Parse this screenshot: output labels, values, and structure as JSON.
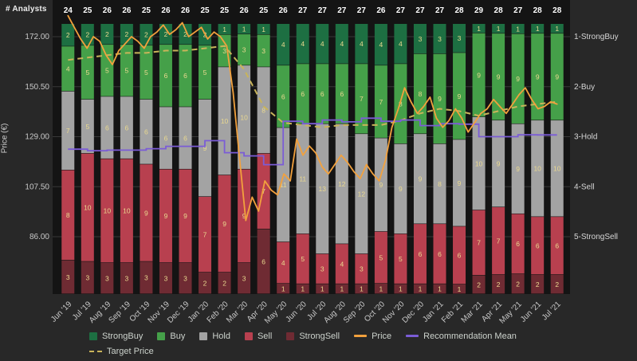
{
  "app": {
    "background": "#282828",
    "plot_background": "#141414",
    "grid_color": "#383838",
    "bar_label_color": "#ead98f",
    "analyst_count_color": "#ffffff",
    "axis_text_color": "#c9c9c9"
  },
  "axes": {
    "top_left_label": "# Analysts",
    "left_label": "Price (€)",
    "price_ticks": [
      "172.00",
      "150.50",
      "129.00",
      "107.50",
      "86.00"
    ],
    "price_tick_values": [
      172,
      150.5,
      129,
      107.5,
      86
    ],
    "recommendation_labels": [
      "1-StrongBuy",
      "2-Buy",
      "3-Hold",
      "4-Sell",
      "5-StrongSell"
    ],
    "recommendation_values": [
      1,
      2,
      3,
      4,
      5
    ]
  },
  "chart_data": {
    "type": "bar",
    "subtype": "100%-stacked monthly analyst recommendations with price, target price and recommendation-mean overlay lines",
    "categories": [
      "Jun '19",
      "Jul '19",
      "Aug '19",
      "Sep '19",
      "Oct '19",
      "Nov '19",
      "Dec '19",
      "Jan '20",
      "Feb '20",
      "Mar '20",
      "Apr '20",
      "May '20",
      "Jun '20",
      "Jul '20",
      "Aug '20",
      "Sep '20",
      "Oct '20",
      "Nov '20",
      "Dec '20",
      "Jan '21",
      "Feb '21",
      "Mar '21",
      "Apr '21",
      "May '21",
      "Jun '21",
      "Jul '21"
    ],
    "analyst_totals": [
      24,
      25,
      26,
      26,
      25,
      26,
      26,
      25,
      25,
      26,
      25,
      26,
      27,
      27,
      27,
      27,
      26,
      27,
      27,
      27,
      28,
      29,
      28,
      27,
      28,
      28
    ],
    "series": [
      {
        "name": "StrongBuy",
        "color": "#1d6f42",
        "values": [
          2,
          2,
          2,
          2,
          2,
          2,
          2,
          2,
          1,
          1,
          1,
          4,
          4,
          4,
          4,
          4,
          4,
          4,
          3,
          3,
          3,
          1,
          1,
          1,
          1,
          1
        ]
      },
      {
        "name": "Buy",
        "color": "#45a049",
        "values": [
          4,
          5,
          5,
          5,
          5,
          6,
          6,
          5,
          3,
          3,
          3,
          6,
          6,
          6,
          6,
          7,
          7,
          8,
          8,
          9,
          9,
          9,
          9,
          9,
          9,
          9
        ]
      },
      {
        "name": "Hold",
        "color": "#a3a3a3",
        "values": [
          7,
          5,
          6,
          6,
          6,
          6,
          6,
          9,
          10,
          10,
          8,
          11,
          11,
          13,
          12,
          12,
          9,
          9,
          9,
          8,
          9,
          10,
          9,
          9,
          10,
          10
        ]
      },
      {
        "name": "Sell",
        "color": "#b8404f",
        "values": [
          8,
          10,
          10,
          10,
          9,
          9,
          9,
          7,
          9,
          9,
          7,
          4,
          5,
          3,
          4,
          3,
          5,
          5,
          6,
          6,
          6,
          7,
          7,
          6,
          6,
          6
        ]
      },
      {
        "name": "StrongSell",
        "color": "#6f2b33",
        "values": [
          3,
          3,
          3,
          3,
          3,
          3,
          3,
          2,
          2,
          3,
          6,
          1,
          1,
          1,
          1,
          1,
          1,
          1,
          1,
          1,
          1,
          2,
          2,
          2,
          2,
          2
        ]
      }
    ],
    "price_line": {
      "name": "Price",
      "color": "#f2a13d",
      "samples_per_month": 3,
      "values": [
        181,
        176,
        171,
        167,
        172,
        170,
        164,
        160,
        166,
        169,
        172,
        170,
        167,
        172,
        174,
        177,
        173,
        175,
        178,
        172,
        174,
        176,
        171,
        174,
        172,
        168,
        148,
        120,
        93,
        103,
        97,
        110,
        106,
        104,
        113,
        110,
        128,
        121,
        125,
        122,
        116,
        113,
        117,
        121,
        118,
        114,
        111,
        117,
        113,
        110,
        119,
        133,
        141,
        150,
        144,
        139,
        142,
        146,
        137,
        133,
        136,
        141,
        137,
        131,
        135,
        139,
        141,
        145,
        142,
        139,
        143,
        147,
        150,
        145,
        141,
        142,
        144,
        143
      ]
    },
    "target_price_line": {
      "name": "Target Price",
      "color": "#c9b45a",
      "dashed": true,
      "values": [
        162,
        163,
        164,
        165,
        165,
        166,
        166,
        167,
        168,
        158,
        142,
        135,
        134,
        133,
        134,
        134,
        134,
        136,
        139,
        141,
        140,
        138,
        140,
        142,
        143,
        144
      ]
    },
    "recommendation_mean_line": {
      "name": "Recommendation Mean",
      "color": "#7b5cd6",
      "axis": "recommendation",
      "weights": {
        "StrongBuy": 1,
        "Buy": 2,
        "Hold": 3,
        "Sell": 4,
        "StrongSell": 5
      },
      "derived": "weighted mean of stacked series per month"
    },
    "price_axis_range": [
      86,
      172
    ],
    "recommendation_axis_range": [
      1,
      5
    ]
  },
  "legend": {
    "row1": [
      {
        "label": "StrongBuy",
        "swatch": "square",
        "color": "#1d6f42"
      },
      {
        "label": "Buy",
        "swatch": "square",
        "color": "#45a049"
      },
      {
        "label": "Hold",
        "swatch": "square",
        "color": "#a3a3a3"
      },
      {
        "label": "Sell",
        "swatch": "square",
        "color": "#b8404f"
      },
      {
        "label": "StrongSell",
        "swatch": "square",
        "color": "#6f2b33"
      },
      {
        "label": "Price",
        "swatch": "line",
        "color": "#f2a13d"
      },
      {
        "label": "Recommendation Mean",
        "swatch": "line",
        "color": "#7b5cd6"
      }
    ],
    "row2": [
      {
        "label": "Target Price",
        "swatch": "dashed-line",
        "color": "#c9b45a"
      }
    ]
  }
}
